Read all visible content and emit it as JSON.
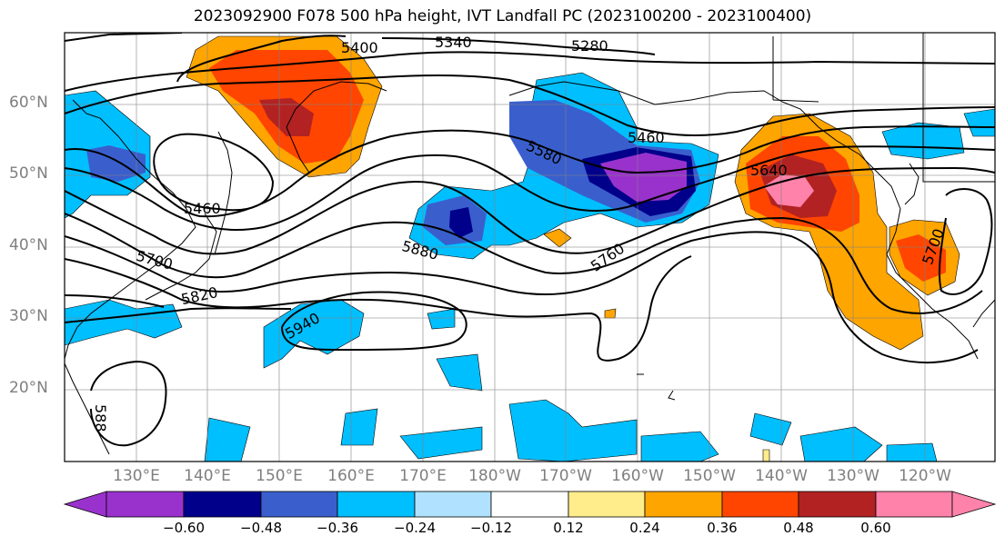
{
  "title": "2023092900 F078 500 hPa height, IVT Landfall PC (2023100200 - 2023100400)",
  "lat_labels": [
    "60°N",
    "50°N",
    "40°N",
    "30°N",
    "20°N"
  ],
  "lon_labels": [
    "130°E",
    "140°E",
    "150°E",
    "160°E",
    "170°E",
    "180°W",
    "170°W",
    "160°W",
    "150°W",
    "140°W",
    "130°W",
    "120°W"
  ],
  "contour_labels": [
    "5400",
    "5340",
    "5280",
    "5460",
    "5580",
    "5640",
    "5460",
    "5700",
    "5820",
    "5880",
    "5760",
    "5700",
    "5940",
    "588"
  ],
  "colorbar": {
    "colors": [
      "#9932CC",
      "#00008B",
      "#3A5FCD",
      "#00BFFF",
      "#00BFFF",
      "#B0E2FF",
      "#FFFFFF",
      "#FFFFFF",
      "#FFEC8B",
      "#FFA500",
      "#FF4500",
      "#B22222",
      "#FF82AB"
    ],
    "tick_labels": [
      "−0.60",
      "−0.48",
      "−0.36",
      "−0.24",
      "−0.12",
      "0.12",
      "0.24",
      "0.36",
      "0.48",
      "0.60"
    ]
  }
}
